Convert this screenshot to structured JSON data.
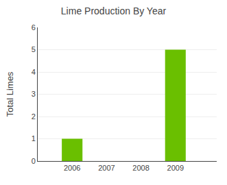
{
  "chart_data": {
    "type": "bar",
    "title": "Lime Production By Year",
    "ylabel": "Total Limes",
    "x": [
      2006,
      2007,
      2008,
      2009
    ],
    "values": [
      1,
      0,
      0,
      5
    ],
    "color": "#6abf00",
    "xlim": [
      2005.0,
      2010.2
    ],
    "xticks": [
      2006,
      2007,
      2008,
      2009
    ],
    "ylim": [
      0,
      6
    ],
    "yticks": [
      0,
      1,
      2,
      3,
      4,
      5,
      6
    ],
    "grid": true
  }
}
